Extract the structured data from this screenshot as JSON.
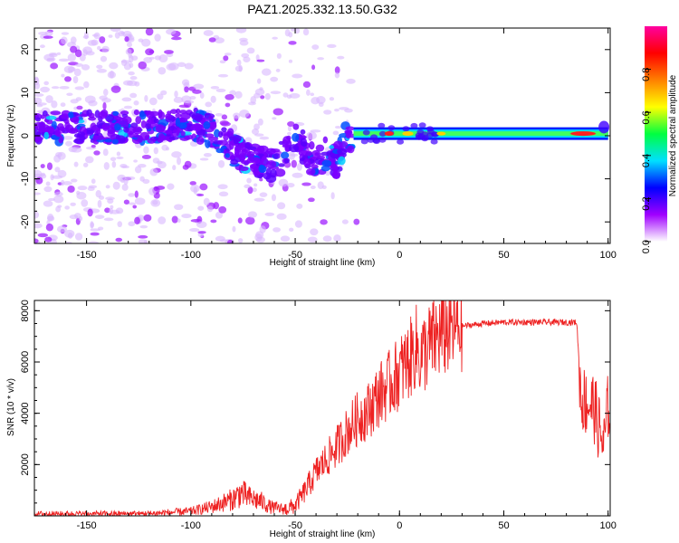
{
  "title": "PAZ1.2025.332.13.50.G32",
  "chart_data": [
    {
      "type": "heatmap",
      "xlabel": "Height of straight line (km)",
      "ylabel": "Frequency (Hz)",
      "xlim": [
        -175,
        101
      ],
      "ylim": [
        -25,
        25
      ],
      "xticks": [
        -150,
        -100,
        -50,
        0,
        50,
        100
      ],
      "xtick_labels": [
        "-150",
        "-100",
        "-50",
        "0",
        "50",
        "100"
      ],
      "yticks": [
        -20,
        -10,
        0,
        10,
        20
      ],
      "ytick_labels": [
        "-20",
        "-10",
        "0",
        "10",
        "20"
      ],
      "colorbar": {
        "label": "Normalized spectral amplitude",
        "range": [
          0,
          1
        ],
        "ticks": [
          0.0,
          0.2,
          0.4,
          0.6,
          0.8
        ],
        "tick_labels": [
          "0.0",
          "0.2",
          "0.4",
          "0.6",
          "0.8"
        ],
        "colors": [
          "#ffffff",
          "#a000ff",
          "#0000ff",
          "#00e0ff",
          "#00ff40",
          "#ffff00",
          "#ff8000",
          "#ff0000",
          "#ff00a0"
        ]
      },
      "ridge": {
        "x": [
          -175,
          -150,
          -120,
          -100,
          -90,
          -80,
          -70,
          -60,
          -55,
          -50,
          -45,
          -40,
          -35,
          -30,
          -25,
          -22,
          0,
          50,
          100
        ],
        "y": [
          2,
          2,
          2,
          3,
          1,
          -3,
          -6,
          -7,
          -4,
          -1,
          -3,
          -7,
          -4,
          -6,
          0,
          0,
          0.5,
          0.5,
          0.5
        ]
      },
      "bright_band": {
        "x_range": [
          -22,
          100
        ],
        "frequency": 0.5,
        "peak_at_x": [
          -5,
          88
        ]
      }
    },
    {
      "type": "line",
      "xlabel": "Height of straight line (km)",
      "ylabel": "SNR (10 * v/v)",
      "xlim": [
        -175,
        101
      ],
      "ylim": [
        0,
        8400
      ],
      "xticks": [
        -150,
        -100,
        -50,
        0,
        50,
        100
      ],
      "xtick_labels": [
        "-150",
        "-100",
        "-50",
        "0",
        "50",
        "100"
      ],
      "yticks": [
        2000,
        4000,
        6000,
        8000
      ],
      "ytick_labels": [
        "2000",
        "4000",
        "6000",
        "8000"
      ],
      "series": [
        {
          "name": "SNR",
          "color": "#ee2222",
          "x": [
            -175,
            -150,
            -120,
            -100,
            -90,
            -80,
            -76,
            -72,
            -66,
            -62,
            -55,
            -50,
            -45,
            -40,
            -35,
            -30,
            -25,
            -20,
            -15,
            -10,
            -5,
            0,
            5,
            8,
            10,
            15,
            20,
            25,
            30,
            40,
            50,
            60,
            70,
            80,
            85,
            87,
            90,
            93,
            96,
            98,
            100
          ],
          "y": [
            80,
            80,
            90,
            180,
            350,
            650,
            900,
            700,
            550,
            350,
            250,
            400,
            1000,
            1700,
            2200,
            2700,
            3300,
            3800,
            4100,
            4700,
            5100,
            5600,
            6100,
            6600,
            6200,
            6700,
            7100,
            7300,
            7400,
            7500,
            7550,
            7550,
            7550,
            7550,
            7550,
            4600,
            4400,
            4300,
            3300,
            2700,
            4300
          ]
        }
      ]
    }
  ]
}
